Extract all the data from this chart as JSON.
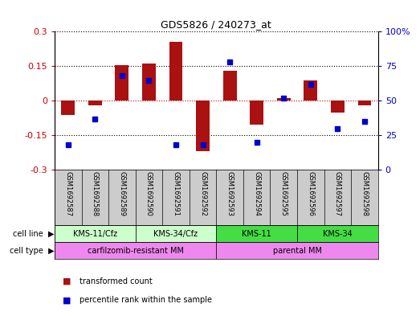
{
  "title": "GDS5826 / 240273_at",
  "samples": [
    "GSM1692587",
    "GSM1692588",
    "GSM1692589",
    "GSM1692590",
    "GSM1692591",
    "GSM1692592",
    "GSM1692593",
    "GSM1692594",
    "GSM1692595",
    "GSM1692596",
    "GSM1692597",
    "GSM1692598"
  ],
  "transformed_count": [
    -0.06,
    -0.02,
    0.155,
    0.16,
    0.255,
    -0.22,
    0.13,
    -0.105,
    0.01,
    0.09,
    -0.05,
    -0.02
  ],
  "percentile_rank": [
    18,
    37,
    68,
    65,
    18,
    18,
    78,
    20,
    52,
    62,
    30,
    35
  ],
  "cell_line_groups": [
    {
      "label": "KMS-11/Cfz",
      "start": 0,
      "end": 2,
      "color": "#ccffcc"
    },
    {
      "label": "KMS-34/Cfz",
      "start": 3,
      "end": 5,
      "color": "#ccffcc"
    },
    {
      "label": "KMS-11",
      "start": 6,
      "end": 8,
      "color": "#44dd44"
    },
    {
      "label": "KMS-34",
      "start": 9,
      "end": 11,
      "color": "#44dd44"
    }
  ],
  "cell_type_groups": [
    {
      "label": "carfilzomib-resistant MM",
      "start": 0,
      "end": 5,
      "color": "#ee88ee"
    },
    {
      "label": "parental MM",
      "start": 6,
      "end": 11,
      "color": "#ee88ee"
    }
  ],
  "ylim_left": [
    -0.3,
    0.3
  ],
  "ylim_right": [
    0,
    100
  ],
  "yticks_left": [
    -0.3,
    -0.15,
    0,
    0.15,
    0.3
  ],
  "yticks_right": [
    0,
    25,
    50,
    75,
    100
  ],
  "bar_color": "#aa1111",
  "dot_color": "#0000cc",
  "zero_line_color": "#cc0000",
  "hline_color": "black",
  "sample_bg_color": "#cccccc",
  "bar_width": 0.5,
  "legend_items": [
    {
      "label": "transformed count",
      "color": "#aa1111"
    },
    {
      "label": "percentile rank within the sample",
      "color": "#0000cc"
    }
  ]
}
